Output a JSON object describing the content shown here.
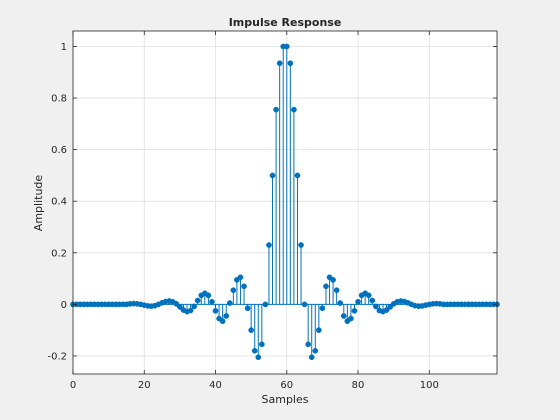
{
  "chart_data": {
    "type": "stem",
    "title": "Impulse Response",
    "xlabel": "Samples",
    "ylabel": "Amplitude",
    "xlim": [
      0,
      119
    ],
    "ylim": [
      -0.27,
      1.06
    ],
    "xticks": [
      0,
      20,
      40,
      60,
      80,
      100
    ],
    "xtick_labels": [
      "0",
      "20",
      "40",
      "60",
      "80",
      "100"
    ],
    "yticks": [
      -0.2,
      0,
      0.2,
      0.4,
      0.6,
      0.8,
      1
    ],
    "ytick_labels": [
      "-0.2",
      "0",
      "0.2",
      "0.4",
      "0.6",
      "0.8",
      "1"
    ],
    "grid": true,
    "color": "#0072bd",
    "x": [
      0,
      1,
      2,
      3,
      4,
      5,
      6,
      7,
      8,
      9,
      10,
      11,
      12,
      13,
      14,
      15,
      16,
      17,
      18,
      19,
      20,
      21,
      22,
      23,
      24,
      25,
      26,
      27,
      28,
      29,
      30,
      31,
      32,
      33,
      34,
      35,
      36,
      37,
      38,
      39,
      40,
      41,
      42,
      43,
      44,
      45,
      46,
      47,
      48,
      49,
      50,
      51,
      52,
      53,
      54,
      55,
      56,
      57,
      58,
      59,
      60,
      61,
      62,
      63,
      64,
      65,
      66,
      67,
      68,
      69,
      70,
      71,
      72,
      73,
      74,
      75,
      76,
      77,
      78,
      79,
      80,
      81,
      82,
      83,
      84,
      85,
      86,
      87,
      88,
      89,
      90,
      91,
      92,
      93,
      94,
      95,
      96,
      97,
      98,
      99,
      100,
      101,
      102,
      103,
      104,
      105,
      106,
      107,
      108,
      109,
      110,
      111,
      112,
      113,
      114,
      115,
      116,
      117,
      118,
      119
    ],
    "y": [
      0,
      0,
      0,
      0,
      0,
      0,
      0,
      0,
      0,
      0,
      0,
      0,
      0,
      0,
      0,
      0,
      0.002,
      0.003,
      0.002,
      0,
      -0.003,
      -0.006,
      -0.007,
      -0.005,
      0,
      0.006,
      0.011,
      0.013,
      0.01,
      0.002,
      -0.01,
      -0.022,
      -0.028,
      -0.024,
      -0.008,
      0.015,
      0.035,
      0.043,
      0.035,
      0.01,
      -0.025,
      -0.055,
      -0.065,
      -0.045,
      0.005,
      0.055,
      0.095,
      0.105,
      0.07,
      -0.015,
      -0.1,
      -0.18,
      -0.205,
      -0.155,
      0,
      0.23,
      0.5,
      0.755,
      0.935,
      1,
      1,
      0.935,
      0.755,
      0.5,
      0.23,
      0,
      -0.155,
      -0.205,
      -0.18,
      -0.1,
      -0.015,
      0.07,
      0.105,
      0.095,
      0.055,
      0.005,
      -0.045,
      -0.065,
      -0.055,
      -0.025,
      0.01,
      0.035,
      0.043,
      0.035,
      0.015,
      -0.008,
      -0.024,
      -0.028,
      -0.022,
      -0.01,
      0.002,
      0.01,
      0.013,
      0.011,
      0.006,
      0,
      -0.005,
      -0.007,
      -0.006,
      -0.003,
      0,
      0.002,
      0.003,
      0.002,
      0,
      0,
      0,
      0,
      0,
      0,
      0,
      0,
      0,
      0,
      0,
      0,
      0,
      0,
      0,
      0
    ]
  }
}
